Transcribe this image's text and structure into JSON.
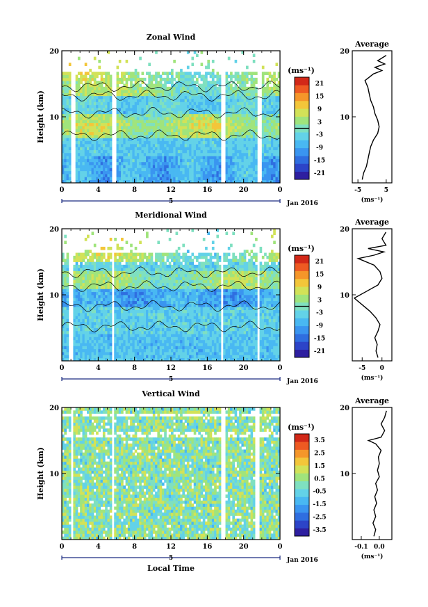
{
  "chart_data": [
    {
      "type": "heatmap",
      "title": "Zonal Wind",
      "ylabel": "Height (km)",
      "xlabel": "",
      "xlim": [
        0,
        24
      ],
      "ylim": [
        0,
        20
      ],
      "x_ticks": [
        "0",
        "4",
        "8",
        "12",
        "16",
        "20",
        "0"
      ],
      "y_ticks": [
        "10",
        "20"
      ],
      "day_label": "5",
      "date_label": "Jan 2016",
      "colorbar_unit": "(ms⁻¹)",
      "colorbar_ticks": [
        "21",
        "15",
        "9",
        "3",
        "-3",
        "-9",
        "-15",
        "-21"
      ],
      "colorbar_range": [
        -24,
        24
      ],
      "contour_level": 0,
      "data_gaps_hours": [
        [
          1.0,
          1.4
        ],
        [
          5.6,
          5.9
        ],
        [
          17.6,
          17.9
        ],
        [
          21.5,
          21.9
        ]
      ],
      "profile": {
        "title": "Average",
        "xlabel": "(ms⁻¹)",
        "x_ticks": [
          "-5",
          "5"
        ],
        "xlim": [
          -7,
          7
        ],
        "y_ticks": [
          "10",
          "20"
        ],
        "points": [
          [
            -3.5,
            0.5
          ],
          [
            -3.0,
            1.5
          ],
          [
            -2.0,
            2.5
          ],
          [
            -1.5,
            3.5
          ],
          [
            -1.0,
            4.5
          ],
          [
            -0.5,
            5.5
          ],
          [
            0.5,
            6.5
          ],
          [
            2.0,
            7.5
          ],
          [
            2.5,
            8.5
          ],
          [
            2.0,
            9.5
          ],
          [
            1.0,
            10.5
          ],
          [
            0.5,
            11.5
          ],
          [
            -0.5,
            12.5
          ],
          [
            -1.0,
            13.5
          ],
          [
            -1.5,
            14.5
          ],
          [
            -2.5,
            15.5
          ],
          [
            0.5,
            16.5
          ],
          [
            3.5,
            17.0
          ],
          [
            1.0,
            17.5
          ],
          [
            4.5,
            18.0
          ],
          [
            2.0,
            18.5
          ],
          [
            5.0,
            19.3
          ]
        ]
      }
    },
    {
      "type": "heatmap",
      "title": "Meridional Wind",
      "ylabel": "Height (km)",
      "xlabel": "",
      "xlim": [
        0,
        24
      ],
      "ylim": [
        0,
        20
      ],
      "x_ticks": [
        "0",
        "4",
        "8",
        "12",
        "16",
        "20",
        "0"
      ],
      "y_ticks": [
        "10",
        "20"
      ],
      "day_label": "5",
      "date_label": "Jan 2016",
      "colorbar_unit": "(ms⁻¹)",
      "colorbar_ticks": [
        "21",
        "15",
        "9",
        "3",
        "-3",
        "-9",
        "-15",
        "-21"
      ],
      "colorbar_range": [
        -24,
        24
      ],
      "contour_level": 0,
      "data_gaps_hours": [
        [
          0.8,
          1.2
        ],
        [
          5.5,
          5.8
        ],
        [
          17.5,
          17.8
        ],
        [
          21.4,
          21.8
        ]
      ],
      "profile": {
        "title": "Average",
        "xlabel": "(ms⁻¹)",
        "x_ticks": [
          "-5",
          "0"
        ],
        "xlim": [
          -7.5,
          2.5
        ],
        "y_ticks": [
          "10",
          "20"
        ],
        "points": [
          [
            -1.0,
            0.5
          ],
          [
            -1.5,
            1.5
          ],
          [
            -1.2,
            2.5
          ],
          [
            -1.8,
            3.5
          ],
          [
            -1.0,
            4.5
          ],
          [
            -0.5,
            5.5
          ],
          [
            -1.5,
            6.5
          ],
          [
            -3.0,
            7.5
          ],
          [
            -5.0,
            8.5
          ],
          [
            -7.0,
            9.5
          ],
          [
            -4.0,
            10.5
          ],
          [
            -1.0,
            11.5
          ],
          [
            0.0,
            12.5
          ],
          [
            -0.5,
            13.5
          ],
          [
            -2.0,
            14.5
          ],
          [
            -6.0,
            15.5
          ],
          [
            -2.0,
            16.0
          ],
          [
            0.5,
            16.5
          ],
          [
            -3.5,
            17.0
          ],
          [
            1.0,
            17.5
          ],
          [
            0.0,
            18.5
          ],
          [
            1.0,
            19.5
          ]
        ]
      }
    },
    {
      "type": "heatmap",
      "title": "Vertical Wind",
      "ylabel": "Height (km)",
      "xlabel": "Local Time",
      "xlim": [
        0,
        24
      ],
      "ylim": [
        0,
        20
      ],
      "x_ticks": [
        "0",
        "4",
        "8",
        "12",
        "16",
        "20",
        "0"
      ],
      "y_ticks": [
        "10",
        "20"
      ],
      "day_label": "5",
      "date_label": "Jan 2016",
      "colorbar_unit": "(ms⁻¹)",
      "colorbar_ticks": [
        "3.5",
        "2.5",
        "1.5",
        "0.5",
        "-0.5",
        "-1.5",
        "-2.5",
        "-3.5"
      ],
      "colorbar_range": [
        -4,
        4
      ],
      "data_gaps_hours": [
        [
          0.9,
          1.3
        ],
        [
          5.5,
          5.8
        ],
        [
          17.6,
          17.9
        ],
        [
          21.3,
          21.7
        ]
      ],
      "profile": {
        "title": "Average",
        "xlabel": "(ms⁻¹)",
        "x_ticks": [
          "-0.1",
          "0.0"
        ],
        "xlim": [
          -0.15,
          0.07
        ],
        "y_ticks": [
          "10",
          "20"
        ],
        "points": [
          [
            -0.03,
            0.5
          ],
          [
            -0.02,
            1.5
          ],
          [
            -0.035,
            2.5
          ],
          [
            -0.02,
            3.5
          ],
          [
            -0.03,
            4.5
          ],
          [
            -0.015,
            5.5
          ],
          [
            -0.025,
            6.5
          ],
          [
            -0.01,
            7.5
          ],
          [
            -0.02,
            8.5
          ],
          [
            0.0,
            9.5
          ],
          [
            -0.01,
            10.5
          ],
          [
            0.0,
            11.5
          ],
          [
            -0.005,
            12.5
          ],
          [
            0.01,
            13.5
          ],
          [
            -0.02,
            14.5
          ],
          [
            -0.06,
            15.0
          ],
          [
            0.01,
            15.5
          ],
          [
            0.03,
            16.5
          ],
          [
            0.01,
            17.5
          ],
          [
            0.03,
            18.5
          ],
          [
            0.04,
            19.5
          ]
        ]
      }
    }
  ]
}
